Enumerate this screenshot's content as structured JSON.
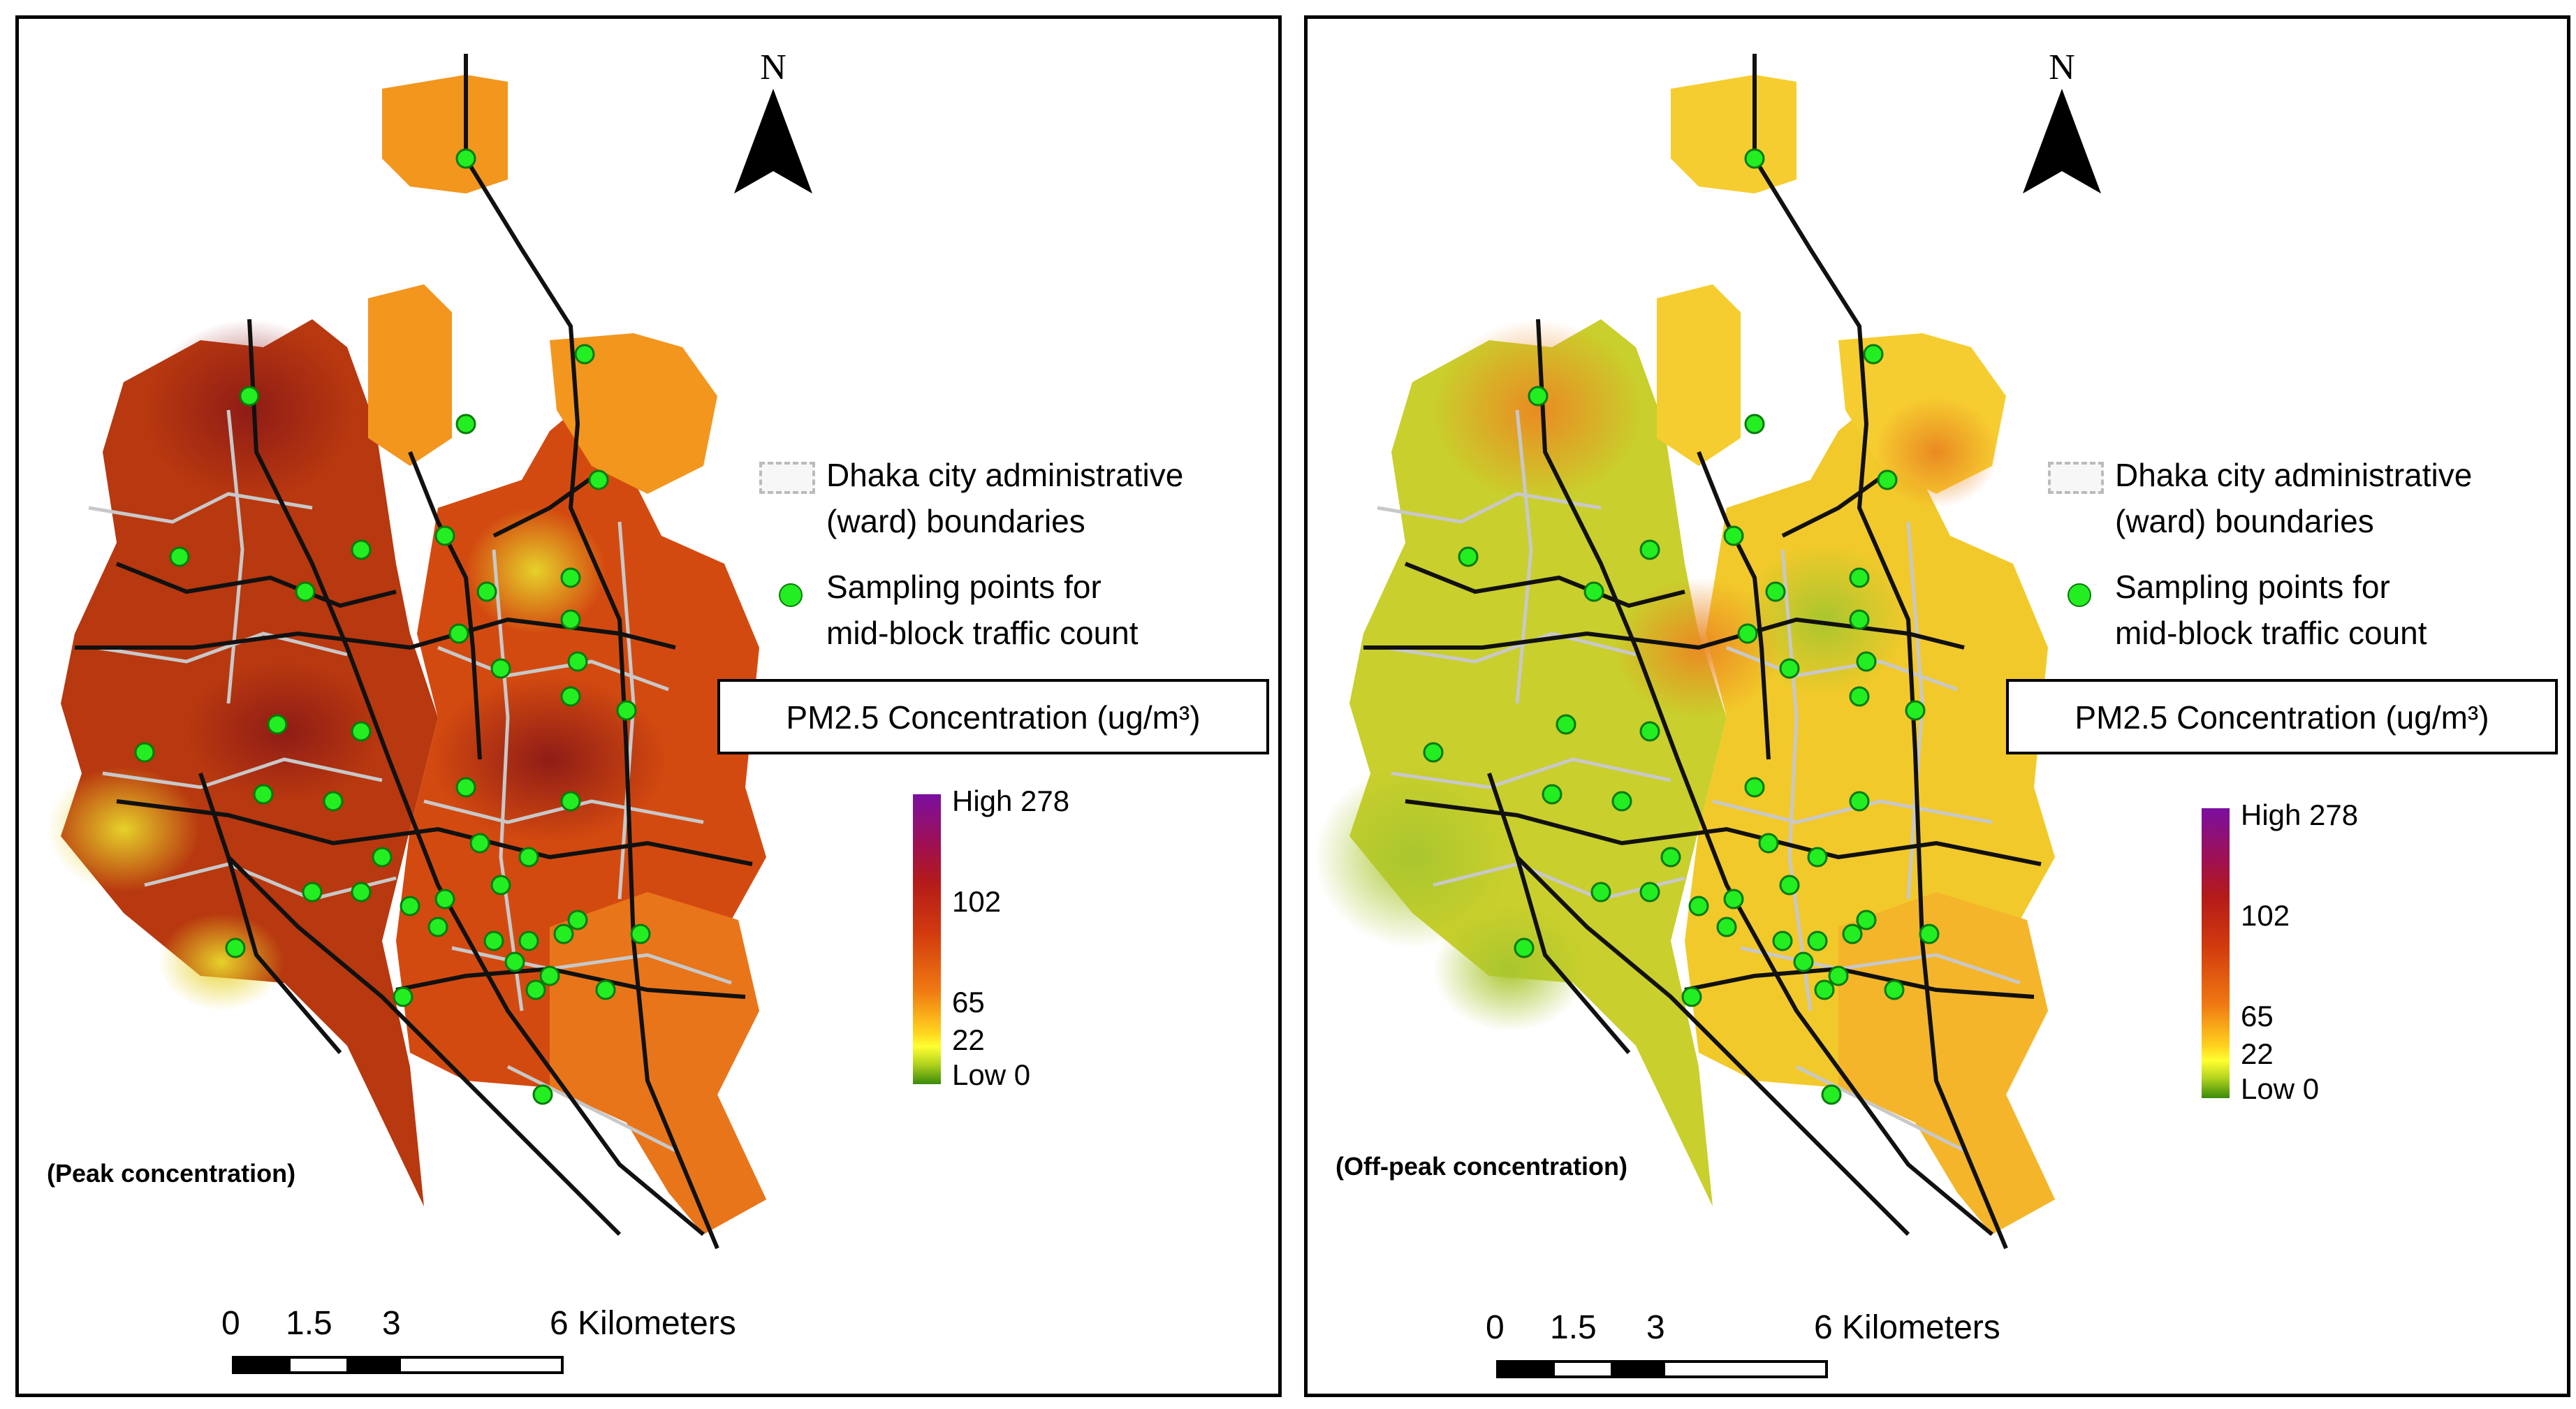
{
  "north_label": "N",
  "panels": [
    {
      "id": "peak",
      "caption": "(Peak concentration)",
      "zone_color_west": "#b8380f",
      "zone_color_center": "#d34a10",
      "zone_color_east": "#e9751a",
      "zone_color_north": "#f2961e",
      "hot_spot_color": "#8f1c16",
      "cool_spot_color": "#e6d12a"
    },
    {
      "id": "offpeak",
      "caption": "(Off-peak concentration)",
      "zone_color_west": "#c9cf2c",
      "zone_color_center": "#f2c92a",
      "zone_color_east": "#f4b52a",
      "zone_color_north": "#f6cd30",
      "hot_spot_color": "#ea8a22",
      "cool_spot_color": "#a9c62e"
    }
  ],
  "legend": {
    "ward_line1": "Dhaka city administrative",
    "ward_line2": "(ward) boundaries",
    "points_line1": "Sampling points for",
    "points_line2": "mid-block traffic count",
    "pm_title": "PM2.5 Concentration (ug/m³)",
    "ramp_high": "High 278",
    "ramp_102": "102",
    "ramp_65": "65",
    "ramp_22": "22",
    "ramp_low": "Low 0"
  },
  "scale": {
    "n0": "0",
    "n1": "1.5",
    "n2": "3",
    "n3": "6 Kilometers"
  },
  "colors": {
    "road": "#111111",
    "ward_boundary": "#c8c8c8",
    "sampling_point": "#22ee22"
  }
}
